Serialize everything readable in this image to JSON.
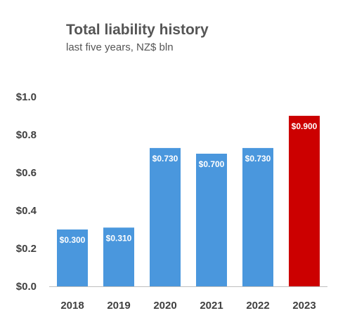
{
  "chart_data": {
    "type": "bar",
    "title": "Total liability history",
    "subtitle": "last five years, NZ$ bln",
    "categories": [
      "2018",
      "2019",
      "2020",
      "2021",
      "2022",
      "2023"
    ],
    "values": [
      0.3,
      0.31,
      0.73,
      0.7,
      0.73,
      0.9
    ],
    "data_labels": [
      "$0.300",
      "$0.310",
      "$0.730",
      "$0.700",
      "$0.730",
      "$0.900"
    ],
    "ylim": [
      0,
      1.0
    ],
    "yticks": [
      0,
      0.2,
      0.4,
      0.6,
      0.8,
      1.0
    ],
    "ytick_labels": [
      "$0.0",
      "$0.2",
      "$0.4",
      "$0.6",
      "$0.8",
      "$1.0"
    ],
    "grid": false,
    "legend": "none",
    "colors": {
      "bar": "#4a97dd",
      "highlight": "#cc0000",
      "label_text": "#ffffff",
      "axis_text": "#404040",
      "axis_line": "#bfbfbf"
    },
    "highlight_index": 5
  }
}
